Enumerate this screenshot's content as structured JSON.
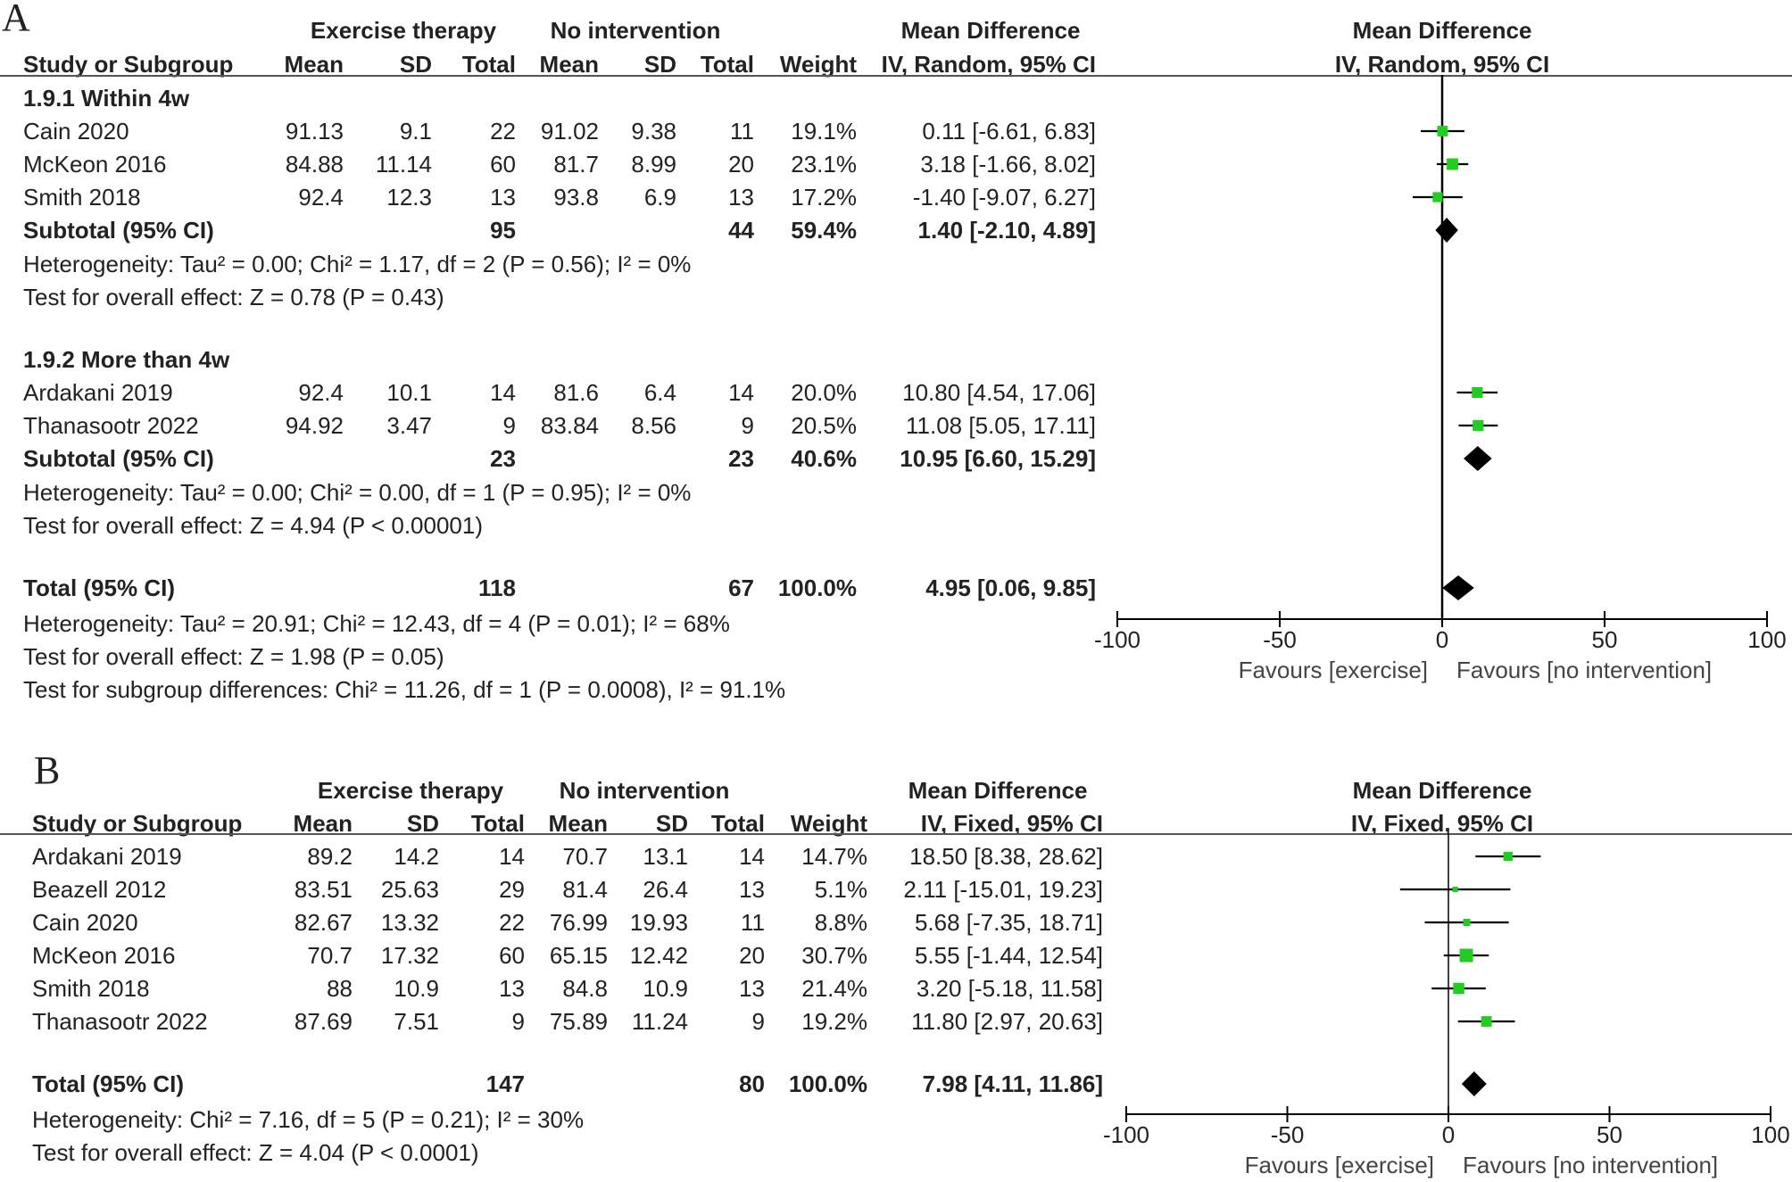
{
  "chart_data": [
    {
      "type": "forest",
      "panel": "A",
      "columns": {
        "study": "Study or Subgroup",
        "group1": "Exercise therapy",
        "group2": "No intervention",
        "mean": "Mean",
        "sd": "SD",
        "total": "Total",
        "weight": "Weight",
        "effect_group": "Mean Difference",
        "effect_method": "IV, Random, 95% CI"
      },
      "subgroups": [
        {
          "name": "1.9.1 Within 4w",
          "studies": [
            {
              "name": "Cain 2020",
              "m1": "91.13",
              "sd1": "9.1",
              "n1": "22",
              "m2": "91.02",
              "sd2": "9.38",
              "n2": "11",
              "weight": "19.1%",
              "ci_text": "0.11 [-6.61, 6.83]",
              "md": 0.11,
              "lo": -6.61,
              "hi": 6.83
            },
            {
              "name": "McKeon 2016",
              "m1": "84.88",
              "sd1": "11.14",
              "n1": "60",
              "m2": "81.7",
              "sd2": "8.99",
              "n2": "20",
              "weight": "23.1%",
              "ci_text": "3.18 [-1.66, 8.02]",
              "md": 3.18,
              "lo": -1.66,
              "hi": 8.02
            },
            {
              "name": "Smith 2018",
              "m1": "92.4",
              "sd1": "12.3",
              "n1": "13",
              "m2": "93.8",
              "sd2": "6.9",
              "n2": "13",
              "weight": "17.2%",
              "ci_text": "-1.40 [-9.07, 6.27]",
              "md": -1.4,
              "lo": -9.07,
              "hi": 6.27
            }
          ],
          "subtotal": {
            "label": "Subtotal (95% CI)",
            "n1": "95",
            "n2": "44",
            "weight": "59.4%",
            "ci_text": "1.40 [-2.10, 4.89]",
            "md": 1.4,
            "lo": -2.1,
            "hi": 4.89
          },
          "heterogeneity": "Heterogeneity: Tau² = 0.00; Chi² = 1.17, df = 2 (P = 0.56); I² = 0%",
          "overall": "Test for overall effect: Z = 0.78 (P = 0.43)"
        },
        {
          "name": "1.9.2 More than 4w",
          "studies": [
            {
              "name": "Ardakani 2019",
              "m1": "92.4",
              "sd1": "10.1",
              "n1": "14",
              "m2": "81.6",
              "sd2": "6.4",
              "n2": "14",
              "weight": "20.0%",
              "ci_text": "10.80 [4.54, 17.06]",
              "md": 10.8,
              "lo": 4.54,
              "hi": 17.06
            },
            {
              "name": "Thanasootr 2022",
              "m1": "94.92",
              "sd1": "3.47",
              "n1": "9",
              "m2": "83.84",
              "sd2": "8.56",
              "n2": "9",
              "weight": "20.5%",
              "ci_text": "11.08 [5.05, 17.11]",
              "md": 11.08,
              "lo": 5.05,
              "hi": 17.11
            }
          ],
          "subtotal": {
            "label": "Subtotal (95% CI)",
            "n1": "23",
            "n2": "23",
            "weight": "40.6%",
            "ci_text": "10.95 [6.60, 15.29]",
            "md": 10.95,
            "lo": 6.6,
            "hi": 15.29
          },
          "heterogeneity": "Heterogeneity: Tau² = 0.00; Chi² = 0.00, df = 1 (P = 0.95); I² = 0%",
          "overall": "Test for overall effect: Z = 4.94 (P < 0.00001)"
        }
      ],
      "total": {
        "label": "Total (95% CI)",
        "n1": "118",
        "n2": "67",
        "weight": "100.0%",
        "ci_text": "4.95 [0.06, 9.85]",
        "md": 4.95,
        "lo": 0.06,
        "hi": 9.85
      },
      "heterogeneity": "Heterogeneity: Tau² = 20.91; Chi² = 12.43, df = 4 (P = 0.01); I² = 68%",
      "overall": "Test for overall effect: Z = 1.98 (P = 0.05)",
      "subgroup_diff": "Test for subgroup differences: Chi² = 11.26, df = 1 (P = 0.0008), I² = 91.1%",
      "axis": {
        "min": -100,
        "max": 100,
        "ticks": [
          "-100",
          "-50",
          "0",
          "50",
          "100"
        ],
        "left_label": "Favours [exercise]",
        "right_label": "Favours [no intervention]"
      }
    },
    {
      "type": "forest",
      "panel": "B",
      "columns": {
        "study": "Study or Subgroup",
        "group1": "Exercise therapy",
        "group2": "No intervention",
        "mean": "Mean",
        "sd": "SD",
        "total": "Total",
        "weight": "Weight",
        "effect_group": "Mean Difference",
        "effect_method": "IV, Fixed, 95% CI"
      },
      "studies": [
        {
          "name": "Ardakani 2019",
          "m1": "89.2",
          "sd1": "14.2",
          "n1": "14",
          "m2": "70.7",
          "sd2": "13.1",
          "n2": "14",
          "weight": "14.7%",
          "ci_text": "18.50 [8.38, 28.62]",
          "md": 18.5,
          "lo": 8.38,
          "hi": 28.62
        },
        {
          "name": "Beazell 2012",
          "m1": "83.51",
          "sd1": "25.63",
          "n1": "29",
          "m2": "81.4",
          "sd2": "26.4",
          "n2": "13",
          "weight": "5.1%",
          "ci_text": "2.11 [-15.01, 19.23]",
          "md": 2.11,
          "lo": -15.01,
          "hi": 19.23
        },
        {
          "name": "Cain 2020",
          "m1": "82.67",
          "sd1": "13.32",
          "n1": "22",
          "m2": "76.99",
          "sd2": "19.93",
          "n2": "11",
          "weight": "8.8%",
          "ci_text": "5.68 [-7.35, 18.71]",
          "md": 5.68,
          "lo": -7.35,
          "hi": 18.71
        },
        {
          "name": "McKeon 2016",
          "m1": "70.7",
          "sd1": "17.32",
          "n1": "60",
          "m2": "65.15",
          "sd2": "12.42",
          "n2": "20",
          "weight": "30.7%",
          "ci_text": "5.55 [-1.44, 12.54]",
          "md": 5.55,
          "lo": -1.44,
          "hi": 12.54
        },
        {
          "name": "Smith 2018",
          "m1": "88",
          "sd1": "10.9",
          "n1": "13",
          "m2": "84.8",
          "sd2": "10.9",
          "n2": "13",
          "weight": "21.4%",
          "ci_text": "3.20 [-5.18, 11.58]",
          "md": 3.2,
          "lo": -5.18,
          "hi": 11.58
        },
        {
          "name": "Thanasootr 2022",
          "m1": "87.69",
          "sd1": "7.51",
          "n1": "9",
          "m2": "75.89",
          "sd2": "11.24",
          "n2": "9",
          "weight": "19.2%",
          "ci_text": "11.80 [2.97, 20.63]",
          "md": 11.8,
          "lo": 2.97,
          "hi": 20.63
        }
      ],
      "total": {
        "label": "Total (95% CI)",
        "n1": "147",
        "n2": "80",
        "weight": "100.0%",
        "ci_text": "7.98 [4.11, 11.86]",
        "md": 7.98,
        "lo": 4.11,
        "hi": 11.86
      },
      "heterogeneity": "Heterogeneity: Chi² = 7.16, df = 5 (P = 0.21); I² = 30%",
      "overall": "Test for overall effect: Z = 4.04 (P < 0.0001)",
      "axis": {
        "min": -100,
        "max": 100,
        "ticks": [
          "-100",
          "-50",
          "0",
          "50",
          "100"
        ],
        "left_label": "Favours [exercise]",
        "right_label": "Favours [no intervention]"
      }
    }
  ],
  "colors": {
    "square": "#22cc22",
    "diamond": "#000000",
    "line": "#000000"
  }
}
